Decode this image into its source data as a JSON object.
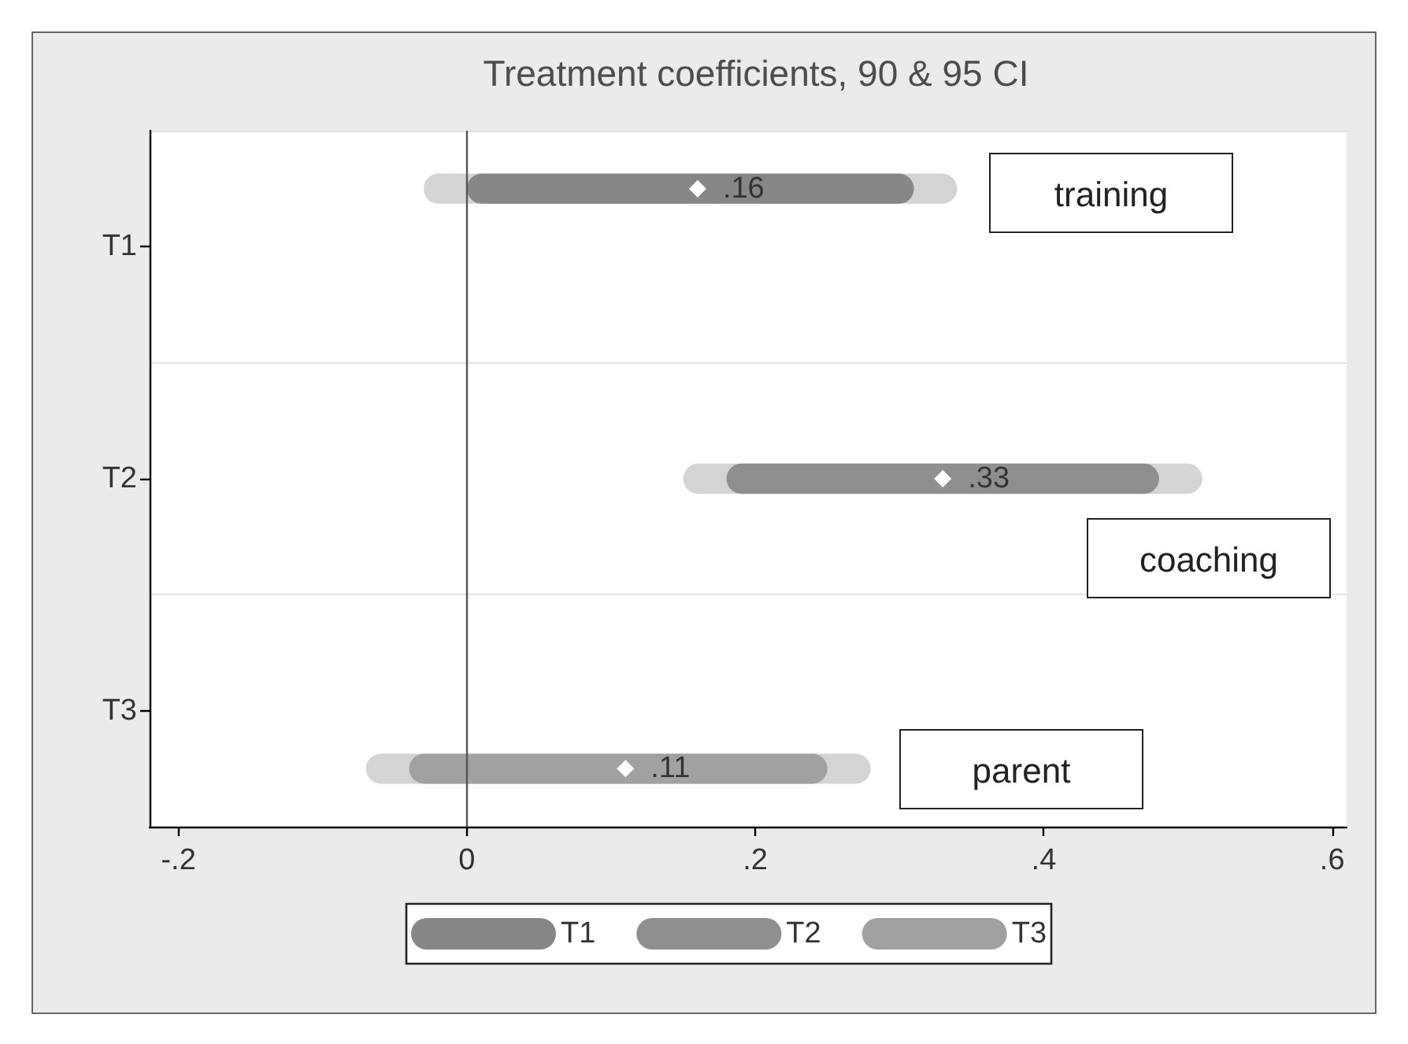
{
  "chart_data": {
    "type": "bar",
    "orientation": "horizontal",
    "title": "Treatment coefficients, 90 & 95 CI",
    "categories": [
      "T1",
      "T2",
      "T3"
    ],
    "series": [
      {
        "color": "#d4d4d4",
        "base": [
          -0.03,
          null,
          null
        ],
        "values": [
          0.37,
          null,
          null
        ]
      },
      {
        "name": "T1",
        "color": "#878787",
        "base": [
          0,
          null,
          null
        ],
        "values": [
          0.31,
          null,
          null
        ]
      },
      {
        "type": "scatter",
        "color": "#ffffff",
        "values": [
          0.16,
          null,
          null
        ],
        "value_labels": [
          ".16",
          null,
          null
        ]
      },
      {
        "color": "#d4d4d4",
        "base": [
          null,
          0.15,
          null
        ],
        "values": [
          null,
          0.36,
          null
        ]
      },
      {
        "name": "T2",
        "color": "#8f8f8f",
        "base": [
          null,
          0.18,
          null
        ],
        "values": [
          null,
          0.3,
          null
        ]
      },
      {
        "type": "scatter",
        "color": "#ffffff",
        "values": [
          null,
          0.33,
          null
        ],
        "value_labels": [
          null,
          ".33",
          null
        ]
      },
      {
        "color": "#d4d4d4",
        "base": [
          null,
          null,
          -0.07
        ],
        "values": [
          null,
          null,
          0.35
        ]
      },
      {
        "name": "T3",
        "color": "#a1a1a1",
        "base": [
          null,
          null,
          -0.04
        ],
        "values": [
          null,
          null,
          0.29
        ]
      },
      {
        "type": "scatter",
        "color": "#ffffff",
        "values": [
          null,
          null,
          0.11
        ],
        "value_labels": [
          null,
          null,
          ".11"
        ]
      }
    ],
    "xlim": [
      -0.22,
      0.61
    ],
    "xticks": [
      {
        "value": -0.2,
        "label": "-.2"
      },
      0,
      {
        "value": 0.2,
        "label": ".2"
      },
      {
        "value": 0.4,
        "label": ".4"
      },
      {
        "value": 0.6,
        "label": ".6"
      }
    ],
    "ref_lines": [
      {
        "axis": "x",
        "value": 0,
        "color": "#555555"
      }
    ],
    "annotations": [
      "training",
      "coaching",
      "parent"
    ],
    "grid": "y",
    "legend": "bottom",
    "marker": "diamond"
  }
}
